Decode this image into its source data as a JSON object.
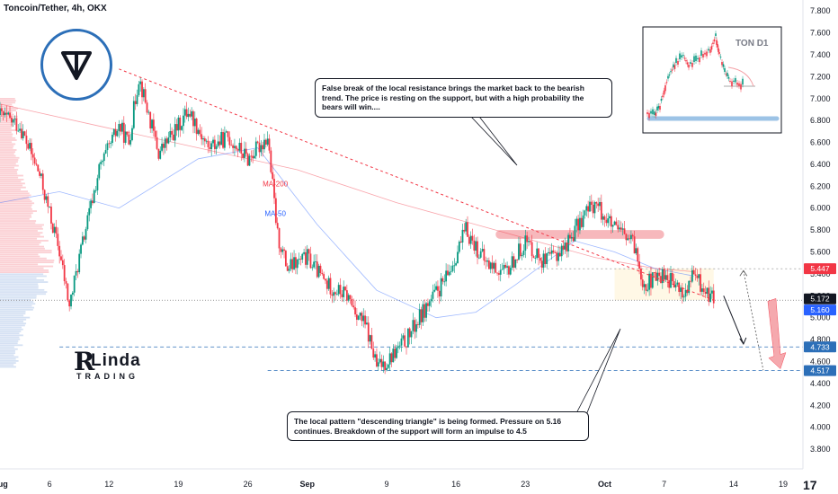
{
  "header": {
    "title": "Toncoin/Tether, 4h, OKX"
  },
  "callouts": {
    "top": "False break of the local resistance brings the market back to the bearish trend. The price is resting on the support, but with a high probability the bears will win....",
    "bottom": "The local pattern \"descending triangle\" is being formed. Pressure on 5.16 continues. Breakdown of the support will form an impulse to 4.5"
  },
  "inset": {
    "title": "TON D1"
  },
  "brand": {
    "name": "Linda",
    "sub": "TRADING",
    "tv_glyph": "17"
  },
  "colors": {
    "up": "#089981",
    "down": "#f23645",
    "ma200": "#f23645",
    "ma50": "#2962ff",
    "accent": "#2c6fb8"
  },
  "chart_data": {
    "type": "candlestick",
    "title": "Toncoin/Tether, 4h, OKX",
    "y_axis": {
      "ticks": [
        7.8,
        7.6,
        7.4,
        7.2,
        7.0,
        6.8,
        6.6,
        6.4,
        6.2,
        6.0,
        5.8,
        5.6,
        5.4,
        5.2,
        5.0,
        4.8,
        4.6,
        4.4,
        4.2,
        4.0,
        3.8
      ],
      "tick_labels": [
        "7.800",
        "7.600",
        "7.400",
        "7.200",
        "7.000",
        "6.800",
        "6.600",
        "6.400",
        "6.200",
        "6.000",
        "5.800",
        "5.600",
        "5.400",
        "5.200",
        "5.000",
        "4.800",
        "4.600",
        "4.400",
        "4.200",
        "4.000",
        "3.800"
      ],
      "range": [
        3.62,
        7.9
      ]
    },
    "x_axis": {
      "tick_labels": [
        "Aug",
        "6",
        "12",
        "19",
        "26",
        "Sep",
        "9",
        "16",
        "23",
        "Oct",
        "7",
        "14",
        "19"
      ],
      "tick_days": [
        0,
        5,
        11,
        18,
        25,
        31,
        39,
        46,
        53,
        61,
        67,
        74,
        79
      ],
      "range_days": [
        0,
        81
      ]
    },
    "price_badges": [
      {
        "label": "5.447",
        "value": 5.447,
        "color": "#f23645"
      },
      {
        "label": "5.172",
        "value": 5.172,
        "color": "#131722"
      },
      {
        "label": "5.160",
        "value": 5.16,
        "color": "#2962ff"
      },
      {
        "label": "4.733",
        "value": 4.733,
        "color": "#2c6fb8"
      },
      {
        "label": "4.517",
        "value": 4.517,
        "color": "#2c6fb8"
      }
    ],
    "moving_averages": [
      {
        "name": "MA-200",
        "points": [
          [
            0,
            6.95
          ],
          [
            10,
            6.75
          ],
          [
            20,
            6.55
          ],
          [
            30,
            6.35
          ],
          [
            40,
            6.05
          ],
          [
            50,
            5.8
          ],
          [
            60,
            5.55
          ],
          [
            66,
            5.45
          ],
          [
            70,
            5.42
          ]
        ]
      },
      {
        "name": "MA-50",
        "points": [
          [
            0,
            6.05
          ],
          [
            6,
            6.15
          ],
          [
            12,
            6.0
          ],
          [
            20,
            6.45
          ],
          [
            26,
            6.55
          ],
          [
            32,
            5.85
          ],
          [
            38,
            5.25
          ],
          [
            44,
            5.0
          ],
          [
            48,
            5.05
          ],
          [
            52,
            5.3
          ],
          [
            58,
            5.7
          ],
          [
            62,
            5.6
          ],
          [
            66,
            5.45
          ],
          [
            70,
            5.38
          ]
        ]
      }
    ],
    "key_points": [
      [
        0,
        6.85
      ],
      [
        2,
        6.75
      ],
      [
        4,
        6.3
      ],
      [
        6,
        5.6
      ],
      [
        7,
        5.1
      ],
      [
        8,
        5.55
      ],
      [
        10,
        6.35
      ],
      [
        12,
        6.75
      ],
      [
        13,
        6.6
      ],
      [
        14,
        7.2
      ],
      [
        16,
        6.5
      ],
      [
        18,
        6.75
      ],
      [
        19,
        6.9
      ],
      [
        21,
        6.55
      ],
      [
        23,
        6.65
      ],
      [
        25,
        6.45
      ],
      [
        27,
        6.65
      ],
      [
        28,
        5.75
      ],
      [
        29,
        5.45
      ],
      [
        31,
        5.55
      ],
      [
        33,
        5.3
      ],
      [
        35,
        5.2
      ],
      [
        37,
        4.9
      ],
      [
        38,
        4.55
      ],
      [
        39,
        4.6
      ],
      [
        41,
        4.8
      ],
      [
        43,
        5.1
      ],
      [
        45,
        5.35
      ],
      [
        47,
        5.8
      ],
      [
        49,
        5.5
      ],
      [
        51,
        5.4
      ],
      [
        53,
        5.7
      ],
      [
        55,
        5.5
      ],
      [
        57,
        5.65
      ],
      [
        59,
        5.95
      ],
      [
        60,
        6.05
      ],
      [
        62,
        5.8
      ],
      [
        63,
        5.75
      ],
      [
        64,
        5.65
      ],
      [
        65,
        5.3
      ],
      [
        67,
        5.4
      ],
      [
        69,
        5.2
      ],
      [
        70,
        5.4
      ],
      [
        71,
        5.25
      ],
      [
        72,
        5.17
      ]
    ],
    "levels": [
      {
        "name": "support",
        "value": 5.16
      },
      {
        "name": "resistance",
        "value": 5.447
      },
      {
        "name": "target-1",
        "value": 4.733
      },
      {
        "name": "target-2",
        "value": 4.517
      }
    ],
    "trendline": {
      "from": [
        12,
        7.27
      ],
      "to": [
        72,
        5.16
      ]
    },
    "projections": [
      {
        "from": [
          73,
          5.2
        ],
        "to": [
          75,
          4.76
        ]
      },
      {
        "from": [
          75,
          5.43
        ],
        "to": [
          77,
          4.52
        ]
      }
    ]
  }
}
